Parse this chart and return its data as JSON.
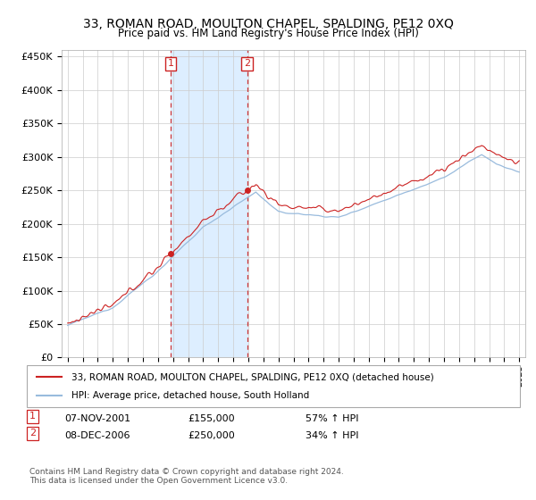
{
  "title": "33, ROMAN ROAD, MOULTON CHAPEL, SPALDING, PE12 0XQ",
  "subtitle": "Price paid vs. HM Land Registry's House Price Index (HPI)",
  "legend_line1": "33, ROMAN ROAD, MOULTON CHAPEL, SPALDING, PE12 0XQ (detached house)",
  "legend_line2": "HPI: Average price, detached house, South Holland",
  "annotation1_label": "1",
  "annotation1_date": "07-NOV-2001",
  "annotation1_price": 155000,
  "annotation1_hpi": "57% ↑ HPI",
  "annotation2_label": "2",
  "annotation2_date": "08-DEC-2006",
  "annotation2_price": 250000,
  "annotation2_hpi": "34% ↑ HPI",
  "footer": "Contains HM Land Registry data © Crown copyright and database right 2024.\nThis data is licensed under the Open Government Licence v3.0.",
  "hpi_color": "#99bbdd",
  "price_color": "#cc2222",
  "annotation_color": "#cc2222",
  "background_color": "#ffffff",
  "grid_color": "#cccccc",
  "shaded_region_color": "#ddeeff",
  "ylim": [
    0,
    460000
  ],
  "yticks": [
    0,
    50000,
    100000,
    150000,
    200000,
    250000,
    300000,
    350000,
    400000,
    450000
  ],
  "sale1_year": 2001.833,
  "sale1_price": 155000,
  "sale2_year": 2006.917,
  "sale2_price": 250000,
  "xmin": 1995,
  "xmax": 2025
}
